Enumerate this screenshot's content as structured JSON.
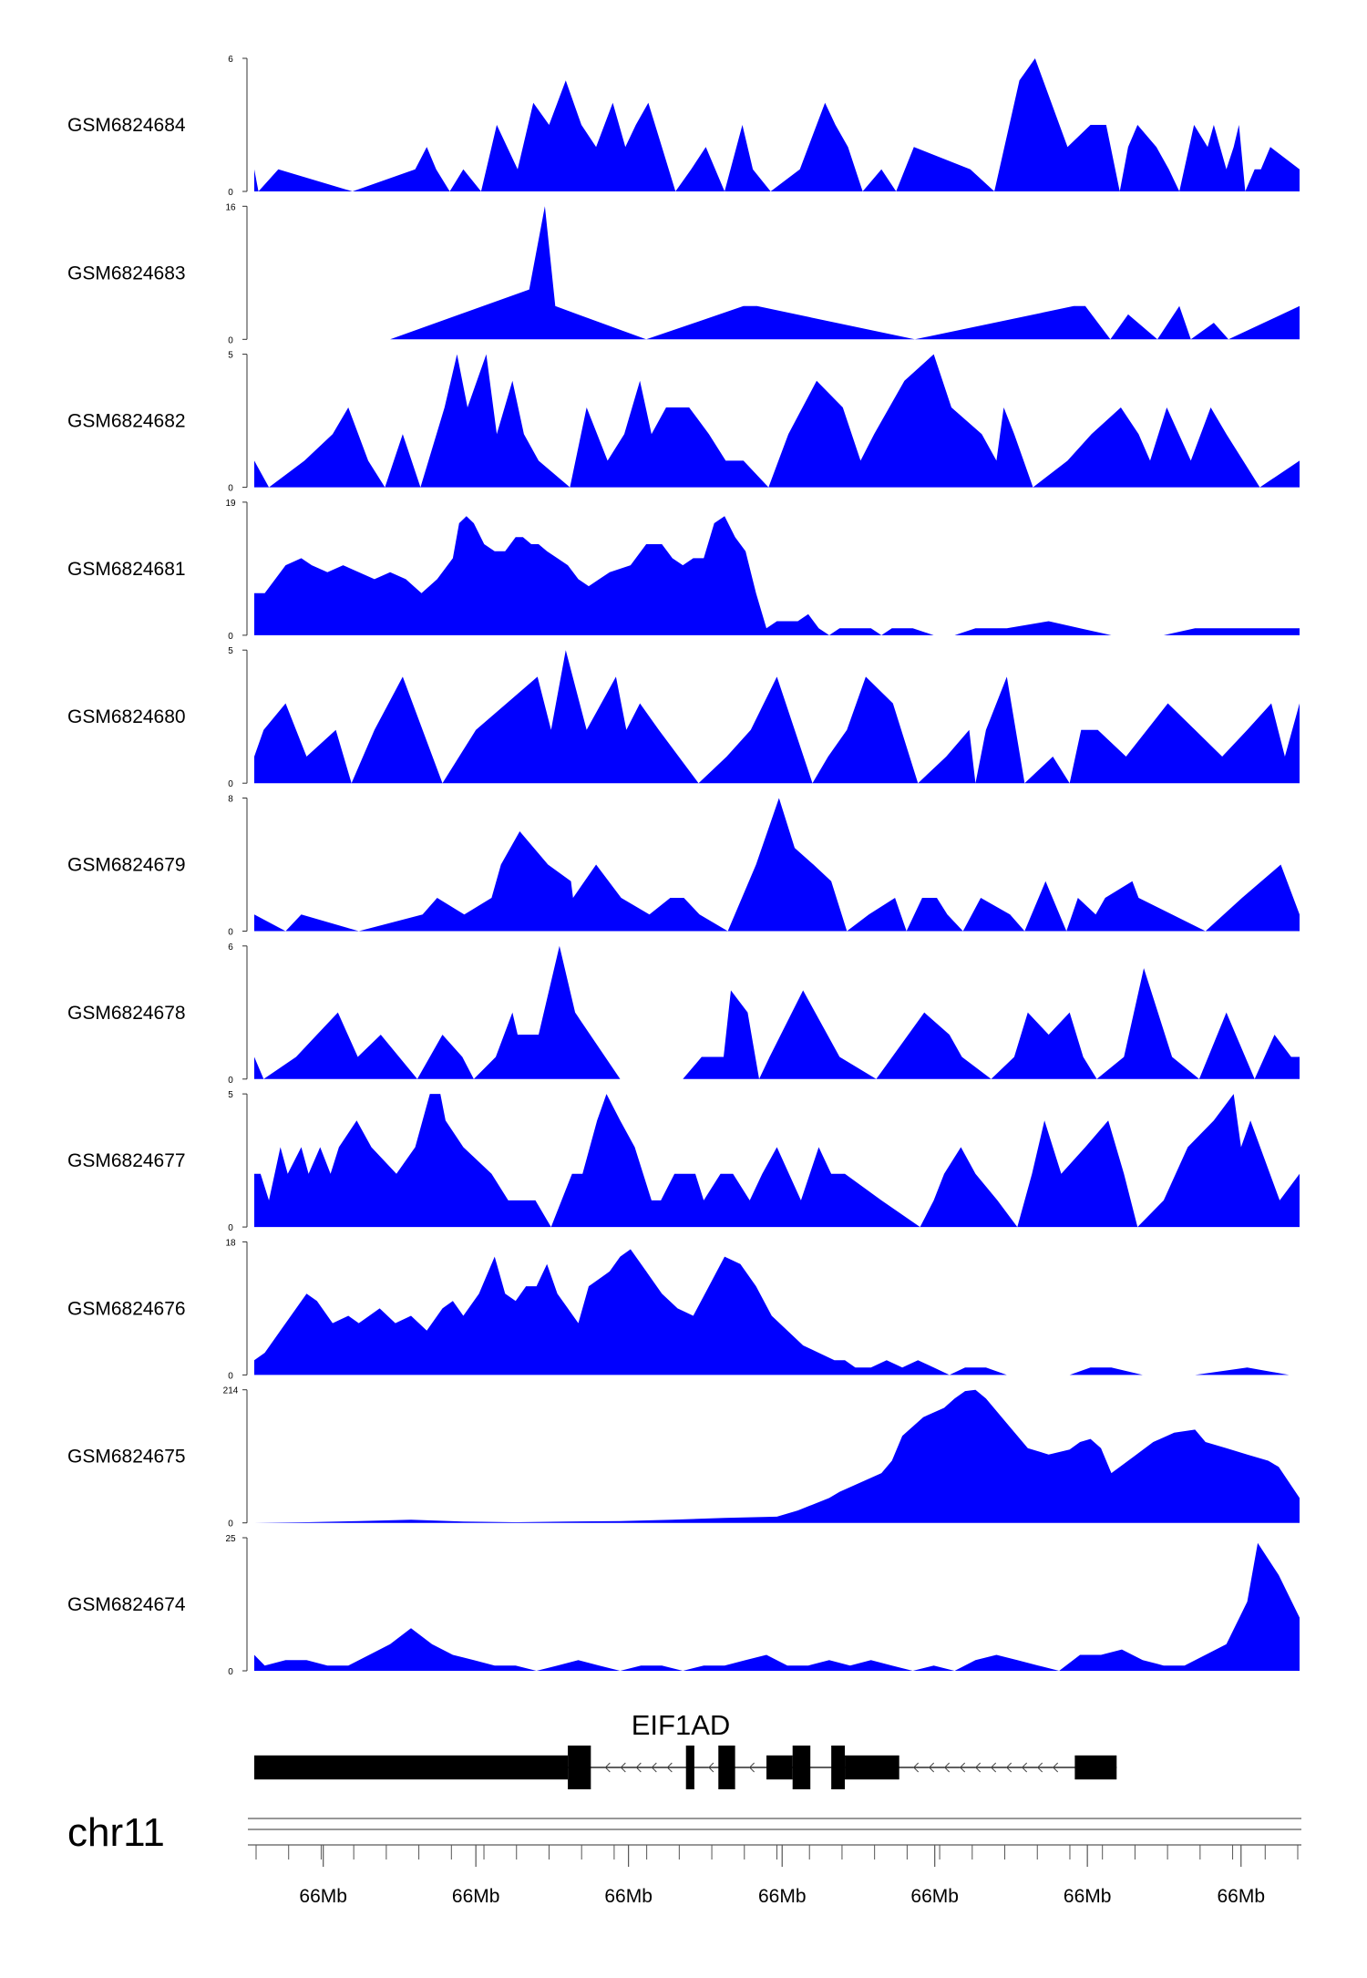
{
  "chart_data": {
    "type": "area",
    "fill_color": "#0000ff",
    "axis_color": "#333333",
    "gene_color": "#000000",
    "tracks": [
      {
        "name": "GSM6824684",
        "ymax": 6,
        "ymin": 0,
        "x": [
          0,
          0.004,
          0.023,
          0.094,
          0.154,
          0.165,
          0.174,
          0.187,
          0.2,
          0.217,
          0.232,
          0.252,
          0.267,
          0.282,
          0.298,
          0.313,
          0.327,
          0.343,
          0.355,
          0.365,
          0.377,
          0.39,
          0.403,
          0.418,
          0.432,
          0.45,
          0.467,
          0.477,
          0.494,
          0.522,
          0.546,
          0.556,
          0.568,
          0.582,
          0.6,
          0.614,
          0.631,
          0.685,
          0.708,
          0.732,
          0.747,
          0.778,
          0.8,
          0.815,
          0.828,
          0.836,
          0.845,
          0.863,
          0.875,
          0.885,
          0.899,
          0.912,
          0.918,
          0.93,
          0.937,
          0.942,
          0.948,
          0.957,
          0.963,
          0.972,
          1
        ],
        "y": [
          1,
          0,
          1,
          0,
          1,
          2,
          1,
          0,
          1,
          0,
          3,
          1,
          4,
          3,
          5,
          3,
          2,
          4,
          2,
          3,
          4,
          2,
          0,
          1,
          2,
          0,
          3,
          1,
          0,
          1,
          4,
          3,
          2,
          0,
          1,
          0,
          2,
          1,
          0,
          5,
          6,
          2,
          3,
          3,
          0,
          2,
          3,
          2,
          1,
          0,
          3,
          2,
          3,
          1,
          2,
          3,
          0,
          1,
          1,
          2,
          1
        ]
      },
      {
        "name": "GSM6824683",
        "ymax": 16,
        "ymin": 0,
        "x": [
          0.13,
          0.263,
          0.278,
          0.288,
          0.375,
          0.468,
          0.481,
          0.632,
          0.784,
          0.795,
          0.819,
          0.836,
          0.864,
          0.885,
          0.896,
          0.918,
          0.932,
          1
        ],
        "y": [
          0,
          6,
          16,
          4,
          0,
          4,
          4,
          0,
          4,
          4,
          0,
          3,
          0,
          4,
          0,
          2,
          0,
          4
        ]
      },
      {
        "name": "GSM6824682",
        "ymax": 5,
        "ymin": 0,
        "x": [
          0,
          0.014,
          0.048,
          0.075,
          0.09,
          0.109,
          0.125,
          0.142,
          0.159,
          0.182,
          0.194,
          0.204,
          0.222,
          0.232,
          0.247,
          0.258,
          0.272,
          0.302,
          0.318,
          0.338,
          0.354,
          0.369,
          0.38,
          0.394,
          0.416,
          0.435,
          0.451,
          0.468,
          0.492,
          0.511,
          0.538,
          0.563,
          0.58,
          0.593,
          0.622,
          0.65,
          0.667,
          0.696,
          0.71,
          0.717,
          0.727,
          0.745,
          0.778,
          0.801,
          0.829,
          0.846,
          0.857,
          0.873,
          0.896,
          0.915,
          0.93,
          0.962,
          1
        ],
        "y": [
          1,
          0,
          1,
          2,
          3,
          1,
          0,
          2,
          0,
          3,
          5,
          3,
          5,
          2,
          4,
          2,
          1,
          0,
          3,
          1,
          2,
          4,
          2,
          3,
          3,
          2,
          1,
          1,
          0,
          2,
          4,
          3,
          1,
          2,
          4,
          5,
          3,
          2,
          1,
          3,
          2,
          0,
          1,
          2,
          3,
          2,
          1,
          3,
          1,
          3,
          2,
          0,
          1
        ]
      },
      {
        "name": "GSM6824681",
        "ymax": 19,
        "ymin": 0,
        "x": [
          0,
          0.01,
          0.03,
          0.045,
          0.055,
          0.07,
          0.085,
          0.1,
          0.115,
          0.13,
          0.145,
          0.16,
          0.175,
          0.19,
          0.196,
          0.203,
          0.21,
          0.22,
          0.23,
          0.24,
          0.25,
          0.257,
          0.265,
          0.272,
          0.28,
          0.29,
          0.3,
          0.31,
          0.32,
          0.33,
          0.34,
          0.36,
          0.375,
          0.39,
          0.4,
          0.41,
          0.42,
          0.43,
          0.44,
          0.45,
          0.46,
          0.47,
          0.48,
          0.49,
          0.5,
          0.51,
          0.52,
          0.53,
          0.54,
          0.55,
          0.56,
          0.575,
          0.59,
          0.6,
          0.61,
          0.63,
          0.65,
          0.67,
          0.69,
          0.72,
          0.76,
          0.79,
          0.82,
          0.85,
          0.87,
          0.9,
          0.93,
          0.96,
          1
        ],
        "y": [
          6,
          6,
          10,
          11,
          10,
          9,
          10,
          9,
          8,
          9,
          8,
          6,
          8,
          11,
          16,
          17,
          16,
          13,
          12,
          12,
          14,
          14,
          13,
          13,
          12,
          11,
          10,
          8,
          7,
          8,
          9,
          10,
          13,
          13,
          11,
          10,
          11,
          11,
          16,
          17,
          14,
          12,
          6,
          1,
          2,
          2,
          2,
          3,
          1,
          0,
          1,
          1,
          1,
          0,
          1,
          1,
          0,
          0,
          1,
          1,
          2,
          1,
          0,
          0,
          0,
          1,
          1,
          1,
          1
        ]
      },
      {
        "name": "GSM6824680",
        "ymax": 5,
        "ymin": 0,
        "x": [
          0,
          0.009,
          0.03,
          0.05,
          0.078,
          0.093,
          0.115,
          0.142,
          0.18,
          0.212,
          0.271,
          0.284,
          0.298,
          0.318,
          0.346,
          0.356,
          0.369,
          0.387,
          0.425,
          0.452,
          0.475,
          0.5,
          0.534,
          0.549,
          0.567,
          0.585,
          0.611,
          0.635,
          0.662,
          0.684,
          0.69,
          0.7,
          0.72,
          0.737,
          0.764,
          0.78,
          0.791,
          0.807,
          0.834,
          0.874,
          0.9,
          0.926,
          0.95,
          0.973,
          0.986,
          1
        ],
        "y": [
          1,
          2,
          3,
          1,
          2,
          0,
          2,
          4,
          0,
          2,
          4,
          2,
          5,
          2,
          4,
          2,
          3,
          2,
          0,
          1,
          2,
          4,
          0,
          1,
          2,
          4,
          3,
          0,
          1,
          2,
          0,
          2,
          4,
          0,
          1,
          0,
          2,
          2,
          1,
          3,
          2,
          1,
          2,
          3,
          1,
          3
        ]
      },
      {
        "name": "GSM6824679",
        "ymax": 8,
        "ymin": 0,
        "x": [
          0,
          0.03,
          0.045,
          0.1,
          0.161,
          0.175,
          0.201,
          0.227,
          0.236,
          0.254,
          0.281,
          0.303,
          0.305,
          0.327,
          0.351,
          0.378,
          0.398,
          0.411,
          0.426,
          0.453,
          0.48,
          0.502,
          0.517,
          0.535,
          0.552,
          0.567,
          0.588,
          0.613,
          0.624,
          0.639,
          0.653,
          0.663,
          0.678,
          0.695,
          0.723,
          0.737,
          0.757,
          0.777,
          0.788,
          0.805,
          0.814,
          0.84,
          0.846,
          0.878,
          0.91,
          0.945,
          0.982,
          1
        ],
        "y": [
          1,
          0,
          1,
          0,
          1,
          2,
          1,
          2,
          4,
          6,
          4,
          3,
          2,
          4,
          2,
          1,
          2,
          2,
          1,
          0,
          4,
          8,
          5,
          4,
          3,
          0,
          1,
          2,
          0,
          2,
          2,
          1,
          0,
          2,
          1,
          0,
          3,
          0,
          2,
          1,
          2,
          3,
          2,
          1,
          0,
          2,
          4,
          1
        ]
      },
      {
        "name": "GSM6824678",
        "ymax": 6,
        "ymin": 0,
        "x": [
          0,
          0.009,
          0.04,
          0.06,
          0.08,
          0.099,
          0.121,
          0.156,
          0.18,
          0.199,
          0.21,
          0.231,
          0.247,
          0.252,
          0.272,
          0.292,
          0.307,
          0.35,
          0.41,
          0.428,
          0.449,
          0.456,
          0.472,
          0.483,
          0.493,
          0.525,
          0.56,
          0.595,
          0.641,
          0.665,
          0.677,
          0.705,
          0.727,
          0.74,
          0.76,
          0.78,
          0.793,
          0.806,
          0.832,
          0.851,
          0.878,
          0.904,
          0.93,
          0.957,
          0.976,
          0.992,
          1
        ],
        "y": [
          1,
          0,
          1,
          2,
          3,
          1,
          2,
          0,
          2,
          1,
          0,
          1,
          3,
          2,
          2,
          6,
          3,
          0,
          0,
          1,
          1,
          4,
          3,
          0,
          1,
          4,
          1,
          0,
          3,
          2,
          1,
          0,
          1,
          3,
          2,
          3,
          1,
          0,
          1,
          5,
          1,
          0,
          3,
          0,
          2,
          1,
          1
        ]
      },
      {
        "name": "GSM6824677",
        "ymax": 5,
        "ymin": 0,
        "x": [
          0,
          0.006,
          0.014,
          0.025,
          0.032,
          0.045,
          0.052,
          0.063,
          0.073,
          0.081,
          0.098,
          0.112,
          0.136,
          0.154,
          0.168,
          0.178,
          0.183,
          0.2,
          0.227,
          0.243,
          0.269,
          0.284,
          0.304,
          0.314,
          0.328,
          0.337,
          0.35,
          0.364,
          0.38,
          0.389,
          0.402,
          0.422,
          0.43,
          0.446,
          0.458,
          0.474,
          0.486,
          0.5,
          0.523,
          0.54,
          0.552,
          0.565,
          0.6,
          0.637,
          0.65,
          0.66,
          0.676,
          0.69,
          0.711,
          0.73,
          0.744,
          0.756,
          0.772,
          0.795,
          0.817,
          0.832,
          0.845,
          0.87,
          0.893,
          0.918,
          0.937,
          0.944,
          0.953,
          0.981,
          1
        ],
        "y": [
          2,
          2,
          1,
          3,
          2,
          3,
          2,
          3,
          2,
          3,
          4,
          3,
          2,
          3,
          5,
          5,
          4,
          3,
          2,
          1,
          1,
          0,
          2,
          2,
          4,
          5,
          4,
          3,
          1,
          1,
          2,
          2,
          1,
          2,
          2,
          1,
          2,
          3,
          1,
          3,
          2,
          2,
          1,
          0,
          1,
          2,
          3,
          2,
          1,
          0,
          2,
          4,
          2,
          3,
          4,
          2,
          0,
          1,
          3,
          4,
          5,
          3,
          4,
          1,
          2
        ]
      },
      {
        "name": "GSM6824676",
        "ymax": 18,
        "ymin": 0,
        "x": [
          0,
          0.01,
          0.025,
          0.05,
          0.06,
          0.075,
          0.09,
          0.1,
          0.11,
          0.12,
          0.135,
          0.15,
          0.165,
          0.18,
          0.19,
          0.2,
          0.215,
          0.23,
          0.24,
          0.25,
          0.26,
          0.27,
          0.28,
          0.29,
          0.3,
          0.31,
          0.32,
          0.33,
          0.34,
          0.35,
          0.36,
          0.375,
          0.39,
          0.405,
          0.42,
          0.435,
          0.45,
          0.465,
          0.48,
          0.495,
          0.51,
          0.525,
          0.54,
          0.555,
          0.565,
          0.575,
          0.59,
          0.605,
          0.62,
          0.635,
          0.65,
          0.665,
          0.68,
          0.7,
          0.72,
          0.74,
          0.76,
          0.78,
          0.8,
          0.82,
          0.85,
          0.9,
          0.95,
          0.99,
          1
        ],
        "y": [
          2,
          3,
          6,
          11,
          10,
          7,
          8,
          7,
          8,
          9,
          7,
          8,
          6,
          9,
          10,
          8,
          11,
          16,
          11,
          10,
          12,
          12,
          15,
          11,
          9,
          7,
          12,
          13,
          14,
          16,
          17,
          14,
          11,
          9,
          8,
          12,
          16,
          15,
          12,
          8,
          6,
          4,
          3,
          2,
          2,
          1,
          1,
          2,
          1,
          2,
          1,
          0,
          1,
          1,
          0,
          0,
          0,
          0,
          1,
          1,
          0,
          0,
          1,
          0,
          0
        ]
      },
      {
        "name": "GSM6824675",
        "ymax": 214,
        "ymin": 0,
        "x": [
          0,
          0.05,
          0.1,
          0.15,
          0.2,
          0.25,
          0.3,
          0.35,
          0.4,
          0.45,
          0.5,
          0.52,
          0.55,
          0.56,
          0.6,
          0.61,
          0.62,
          0.64,
          0.66,
          0.67,
          0.68,
          0.69,
          0.7,
          0.72,
          0.74,
          0.76,
          0.78,
          0.79,
          0.8,
          0.81,
          0.82,
          0.84,
          0.86,
          0.88,
          0.9,
          0.91,
          0.93,
          0.95,
          0.97,
          0.98,
          1
        ],
        "y": [
          0,
          1,
          3,
          5,
          2,
          1,
          2,
          3,
          5,
          8,
          10,
          20,
          40,
          50,
          80,
          100,
          140,
          170,
          185,
          200,
          212,
          214,
          200,
          160,
          120,
          110,
          118,
          130,
          135,
          120,
          80,
          105,
          130,
          145,
          150,
          130,
          120,
          110,
          100,
          90,
          40
        ]
      },
      {
        "name": "GSM6824674",
        "ymax": 25,
        "ymin": 0,
        "x": [
          0,
          0.01,
          0.03,
          0.05,
          0.07,
          0.09,
          0.11,
          0.13,
          0.15,
          0.17,
          0.19,
          0.21,
          0.23,
          0.25,
          0.27,
          0.29,
          0.31,
          0.33,
          0.35,
          0.37,
          0.39,
          0.41,
          0.43,
          0.45,
          0.47,
          0.49,
          0.51,
          0.53,
          0.55,
          0.57,
          0.59,
          0.61,
          0.63,
          0.65,
          0.67,
          0.69,
          0.71,
          0.73,
          0.75,
          0.77,
          0.79,
          0.81,
          0.83,
          0.85,
          0.87,
          0.89,
          0.91,
          0.93,
          0.94,
          0.95,
          0.96,
          0.98,
          1
        ],
        "y": [
          3,
          1,
          2,
          2,
          1,
          1,
          3,
          5,
          8,
          5,
          3,
          2,
          1,
          1,
          0,
          1,
          2,
          1,
          0,
          1,
          1,
          0,
          1,
          1,
          2,
          3,
          1,
          1,
          2,
          1,
          2,
          1,
          0,
          1,
          0,
          2,
          3,
          2,
          1,
          0,
          3,
          3,
          4,
          2,
          1,
          1,
          3,
          5,
          9,
          13,
          24,
          18,
          10
        ]
      }
    ],
    "gene": {
      "name": "EIF1AD",
      "strand": "-",
      "exons": [
        [
          0.0,
          0.3
        ],
        [
          0.3,
          0.322
        ],
        [
          0.413,
          0.421
        ],
        [
          0.444,
          0.46
        ],
        [
          0.49,
          0.515
        ],
        [
          0.515,
          0.532
        ],
        [
          0.552,
          0.565
        ],
        [
          0.565,
          0.617
        ],
        [
          0.785,
          0.825
        ]
      ],
      "exon_height": [
        0.55,
        1.0,
        1.0,
        1.0,
        0.55,
        1.0,
        1.0,
        0.55,
        0.55
      ]
    },
    "chromosome": "chr11",
    "x_ticks": [
      "66Mb",
      "66Mb",
      "66Mb",
      "66Mb",
      "66Mb",
      "66Mb",
      "66Mb"
    ],
    "x_tick_positions": [
      0.066,
      0.212,
      0.358,
      0.505,
      0.651,
      0.797,
      0.944
    ],
    "minor_tick_count": 33
  }
}
